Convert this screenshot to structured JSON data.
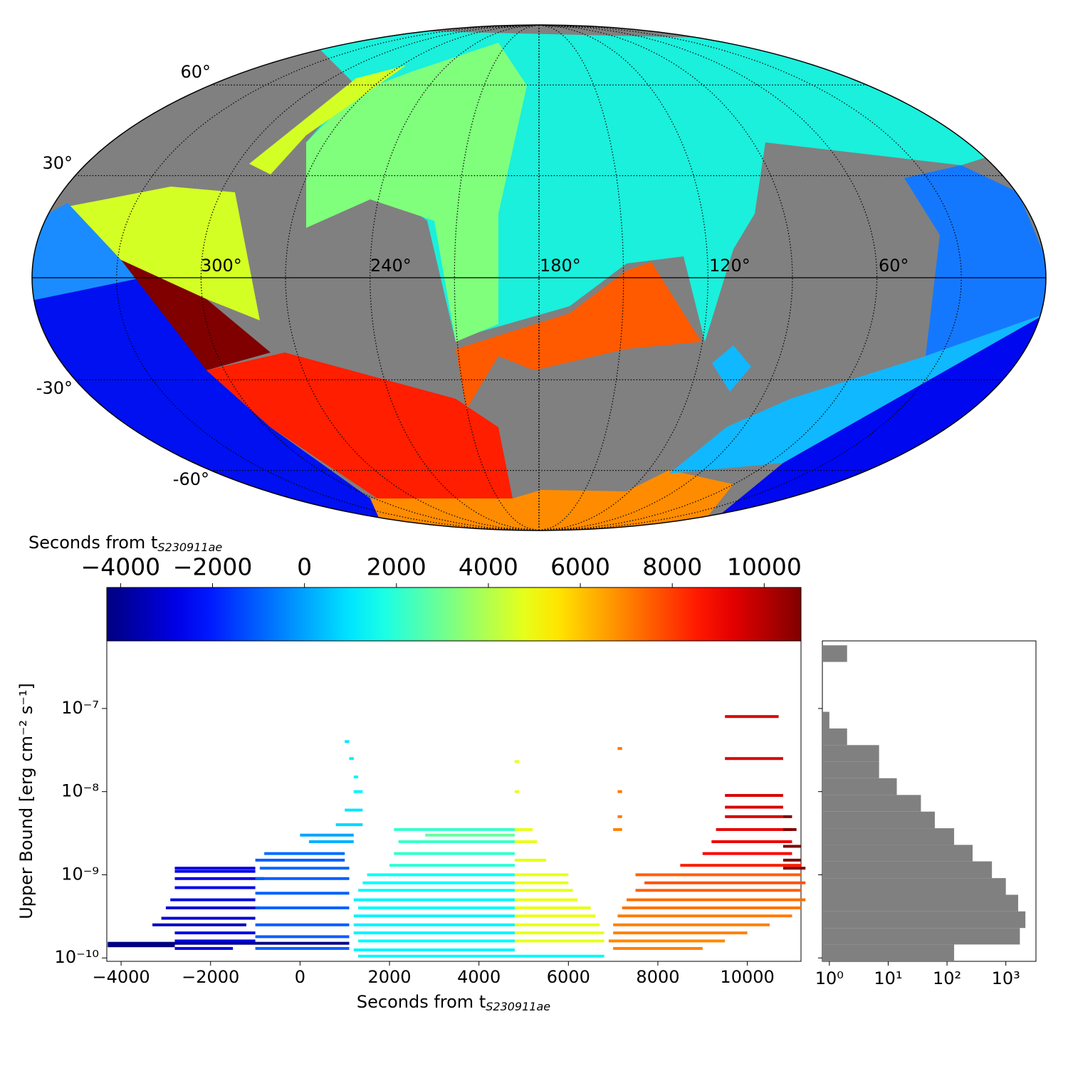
{
  "chart_data": [
    {
      "type": "skymap",
      "lat_labels": [
        "60°",
        "30°",
        "-30°",
        "-60°"
      ],
      "lon_labels": [
        "300°",
        "240°",
        "180°",
        "120°",
        "60°"
      ]
    },
    {
      "type": "colorbar",
      "label": "Seconds from t",
      "label_sub": "S230911ae",
      "xlim": [
        -4300,
        10800
      ],
      "xticks": [
        {
          "value": -4000,
          "label": "−4000"
        },
        {
          "value": -2000,
          "label": "−2000"
        },
        0,
        2000,
        4000,
        6000,
        8000,
        10000
      ]
    },
    {
      "type": "segments",
      "xlabel": "Seconds from t",
      "xlabel_sub": "S230911ae",
      "ylabel": "Upper Bound [erg cm⁻² s⁻¹]",
      "log_y": true,
      "xlim": [
        -4320,
        11200
      ],
      "ylim": [
        9.1e-11,
        6.5e-07
      ],
      "xticks": [
        {
          "value": -4000,
          "label": "−4000"
        },
        {
          "value": -2000,
          "label": "−2000"
        },
        0,
        2000,
        4000,
        6000,
        8000,
        10000
      ],
      "yticks": [
        {
          "value": 1e-10,
          "label": "10⁻¹⁰"
        },
        {
          "value": 1e-09,
          "label": "10⁻⁹"
        },
        {
          "value": 1e-08,
          "label": "10⁻⁸"
        },
        {
          "value": 1e-07,
          "label": "10⁻⁷"
        }
      ],
      "start": [
        -4300,
        -4300,
        -2800,
        -2800,
        -2800,
        -2800,
        -2900,
        -3000,
        -3100,
        -3300,
        -2800,
        -2800,
        -2800,
        -800,
        -1000,
        -900,
        -1000,
        -1000,
        -1000,
        -1000,
        -1000,
        -1000,
        0,
        200,
        1000,
        1100,
        1200,
        1200,
        1000,
        800,
        1300,
        1200,
        1300,
        1200,
        1200,
        1200,
        1300,
        1200,
        1300,
        1400,
        1500,
        2000,
        2100,
        2200,
        2100,
        2800,
        4800,
        4800,
        4800,
        4800,
        4800,
        4800,
        4800,
        4800,
        4800,
        4800,
        4800,
        4800,
        4800,
        4800,
        7000,
        7100,
        7100,
        7100,
        7000,
        6900,
        7000,
        7000,
        7100,
        7200,
        7300,
        7500,
        7700,
        7500,
        8500,
        9000,
        9200,
        9300,
        9500,
        9500,
        9500,
        9500,
        9500,
        10800,
        10800,
        10800,
        10800,
        10800
      ],
      "end": [
        1100,
        -2800,
        -1000,
        -1000,
        -800,
        -1000,
        -1000,
        -900,
        -1000,
        -1200,
        -1000,
        -1000,
        -1500,
        1000,
        1000,
        1100,
        1100,
        1100,
        1100,
        1100,
        1100,
        1100,
        1200,
        1200,
        1100,
        1200,
        1300,
        1400,
        1400,
        1400,
        6800,
        4800,
        4800,
        4800,
        4800,
        4800,
        4800,
        4800,
        4800,
        4800,
        4800,
        4800,
        4800,
        4800,
        5000,
        4800,
        6800,
        6800,
        6700,
        6600,
        6500,
        6200,
        6100,
        6000,
        6000,
        5500,
        5300,
        5200,
        4900,
        4900,
        7200,
        7200,
        7200,
        7200,
        9000,
        9500,
        10000,
        10500,
        11000,
        11200,
        11300,
        11200,
        11300,
        11200,
        11200,
        11000,
        11000,
        11000,
        10800,
        10800,
        10800,
        10800,
        10700,
        11200,
        11300,
        11200,
        11100,
        11000
      ],
      "values": [
        1.5e-10,
        1.4e-10,
        1.2e-09,
        1.1e-09,
        9e-10,
        7e-10,
        5e-10,
        4e-10,
        3e-10,
        2.5e-10,
        2e-10,
        1.6e-10,
        1.3e-10,
        1.8e-09,
        1.5e-09,
        1.2e-09,
        9e-10,
        6e-10,
        4e-10,
        2.5e-10,
        1.8e-10,
        1.3e-10,
        3e-09,
        2.5e-09,
        4e-08,
        2.5e-08,
        1.5e-08,
        1e-08,
        6e-09,
        4e-09,
        1.05e-10,
        1.25e-10,
        1.6e-10,
        2e-10,
        2.5e-10,
        3.2e-10,
        4e-10,
        5e-10,
        6.5e-10,
        8e-10,
        1e-09,
        1.3e-09,
        1.8e-09,
        2.5e-09,
        3.5e-09,
        3e-09,
        1.6e-10,
        2e-10,
        2.5e-10,
        3.2e-10,
        4e-10,
        5e-10,
        6.5e-10,
        8e-10,
        1e-09,
        1.5e-09,
        2.5e-09,
        3.5e-09,
        1e-08,
        2.3e-08,
        3.5e-09,
        5e-09,
        1e-08,
        3.3e-08,
        1.3e-10,
        1.6e-10,
        2e-10,
        2.5e-10,
        3.2e-10,
        4e-10,
        5e-10,
        6.5e-10,
        8e-10,
        1e-09,
        1.3e-09,
        1.8e-09,
        2.5e-09,
        3.5e-09,
        5e-09,
        6.5e-09,
        9e-09,
        2.5e-08,
        8e-08,
        1.5e-09,
        1.2e-09,
        2.2e-09,
        3.5e-09,
        5e-09
      ]
    },
    {
      "type": "histogram",
      "orientation": "horizontal",
      "color": "#808080",
      "log_x": true,
      "log_y": true,
      "bins": [
        9.1e-11,
        1.45e-10,
        2.29e-10,
        3.63e-10,
        5.75e-10,
        9.12e-10,
        1.45e-09,
        2.29e-09,
        3.63e-09,
        5.75e-09,
        9.12e-09,
        1.45e-08,
        2.29e-08,
        3.63e-08,
        5.75e-08,
        9.12e-08,
        1.45e-07,
        2.29e-07,
        3.63e-07,
        5.75e-07
      ],
      "values": [
        132,
        1730,
        2150,
        1620,
        1000,
        580,
        272,
        132,
        62,
        36,
        14,
        7,
        7,
        2,
        1,
        0,
        0,
        0,
        2
      ],
      "xlim": [
        0.76,
        3250
      ],
      "ylim": [
        9.1e-11,
        6.5e-07
      ],
      "xticks": [
        {
          "value": 1,
          "label": "10⁰"
        },
        {
          "value": 10,
          "label": "10¹"
        },
        {
          "value": 100,
          "label": "10²"
        },
        {
          "value": 1000,
          "label": "10³"
        }
      ]
    }
  ]
}
